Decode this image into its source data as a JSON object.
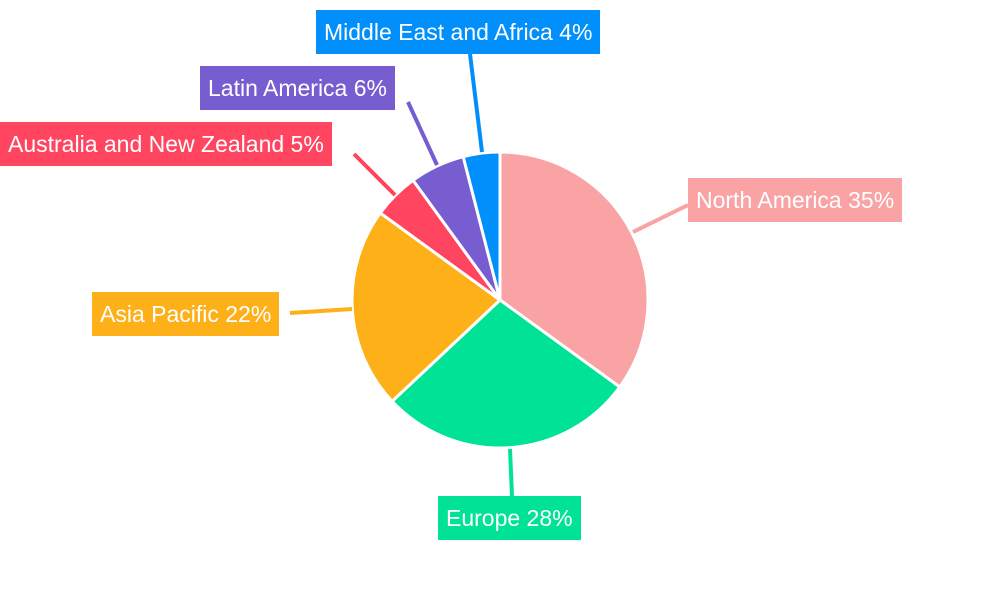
{
  "chart_data": {
    "type": "pie",
    "title": "",
    "start_angle_deg": 0,
    "direction": "clockwise",
    "slices": [
      {
        "label": "North America 35%",
        "name": "North America",
        "value": 35,
        "color": "#F9A3A4"
      },
      {
        "label": "Europe 28%",
        "name": "Europe",
        "value": 28,
        "color": "#00E396"
      },
      {
        "label": "Asia Pacific 22%",
        "name": "Asia Pacific",
        "value": 22,
        "color": "#FEB019"
      },
      {
        "label": "Australia and New Zealand 5%",
        "name": "Australia and New Zealand",
        "value": 5,
        "color": "#FF4560"
      },
      {
        "label": "Latin America 6%",
        "name": "Latin America",
        "value": 6,
        "color": "#775DD0"
      },
      {
        "label": "Middle East and Africa 4%",
        "name": "Middle East and Africa",
        "value": 4,
        "color": "#008FFB"
      }
    ],
    "legend": "none"
  }
}
